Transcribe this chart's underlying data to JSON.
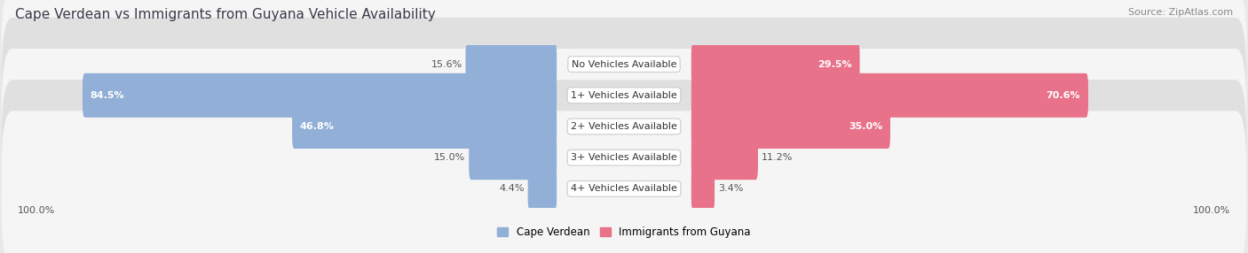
{
  "title": "Cape Verdean vs Immigrants from Guyana Vehicle Availability",
  "source": "Source: ZipAtlas.com",
  "categories": [
    "No Vehicles Available",
    "1+ Vehicles Available",
    "2+ Vehicles Available",
    "3+ Vehicles Available",
    "4+ Vehicles Available"
  ],
  "cape_verdean": [
    15.6,
    84.5,
    46.8,
    15.0,
    4.4
  ],
  "guyana": [
    29.5,
    70.6,
    35.0,
    11.2,
    3.4
  ],
  "color_cv": "#92afd7",
  "color_gy": "#e8728a",
  "bg_color": "#e8e8e8",
  "row_bg_light": "#f5f5f5",
  "row_bg_dark": "#e0e0e0",
  "max_val": 100.0,
  "legend_cv": "Cape Verdean",
  "legend_gy": "Immigrants from Guyana",
  "title_color": "#3a3a4a",
  "source_color": "#888888",
  "label_color_dark": "#555555",
  "label_color_white": "#ffffff"
}
